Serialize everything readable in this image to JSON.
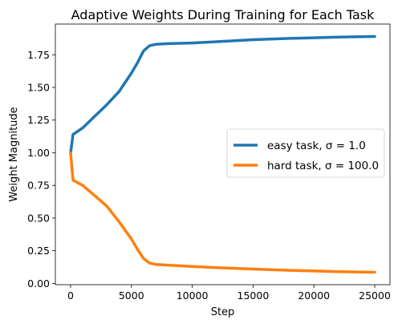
{
  "chart_data": {
    "type": "line",
    "title": "Adaptive Weights During Training for Each Task",
    "xlabel": "Step",
    "ylabel": "Weight Magnitude",
    "xlim": [
      -1250,
      26250
    ],
    "ylim": [
      -0.01,
      1.985
    ],
    "xticks": [
      0,
      5000,
      10000,
      15000,
      20000,
      25000
    ],
    "yticks": [
      0.0,
      0.25,
      0.5,
      0.75,
      1.0,
      1.25,
      1.5,
      1.75
    ],
    "ytick_labels": [
      "0.00",
      "0.25",
      "0.50",
      "0.75",
      "1.00",
      "1.25",
      "1.50",
      "1.75"
    ],
    "grid": false,
    "legend_position": "center-right",
    "series": [
      {
        "name": "easy task, σ = 1.0",
        "color": "#1f77b4",
        "x": [
          0,
          200,
          1000,
          2000,
          3000,
          4000,
          5000,
          5500,
          6000,
          6500,
          7000,
          8000,
          10000,
          12000,
          15000,
          18000,
          20000,
          22000,
          25000
        ],
        "y": [
          1.0,
          1.14,
          1.19,
          1.28,
          1.37,
          1.47,
          1.61,
          1.69,
          1.78,
          1.82,
          1.83,
          1.835,
          1.84,
          1.85,
          1.865,
          1.875,
          1.88,
          1.885,
          1.89
        ]
      },
      {
        "name": "hard task, σ = 100.0",
        "color": "#ff7f0e",
        "x": [
          0,
          200,
          1000,
          2000,
          3000,
          4000,
          5000,
          5500,
          6000,
          6500,
          7000,
          8000,
          10000,
          12000,
          15000,
          18000,
          20000,
          22000,
          25000
        ],
        "y": [
          1.0,
          0.79,
          0.75,
          0.67,
          0.59,
          0.47,
          0.34,
          0.26,
          0.19,
          0.155,
          0.145,
          0.14,
          0.13,
          0.12,
          0.11,
          0.1,
          0.095,
          0.09,
          0.085
        ]
      }
    ]
  }
}
